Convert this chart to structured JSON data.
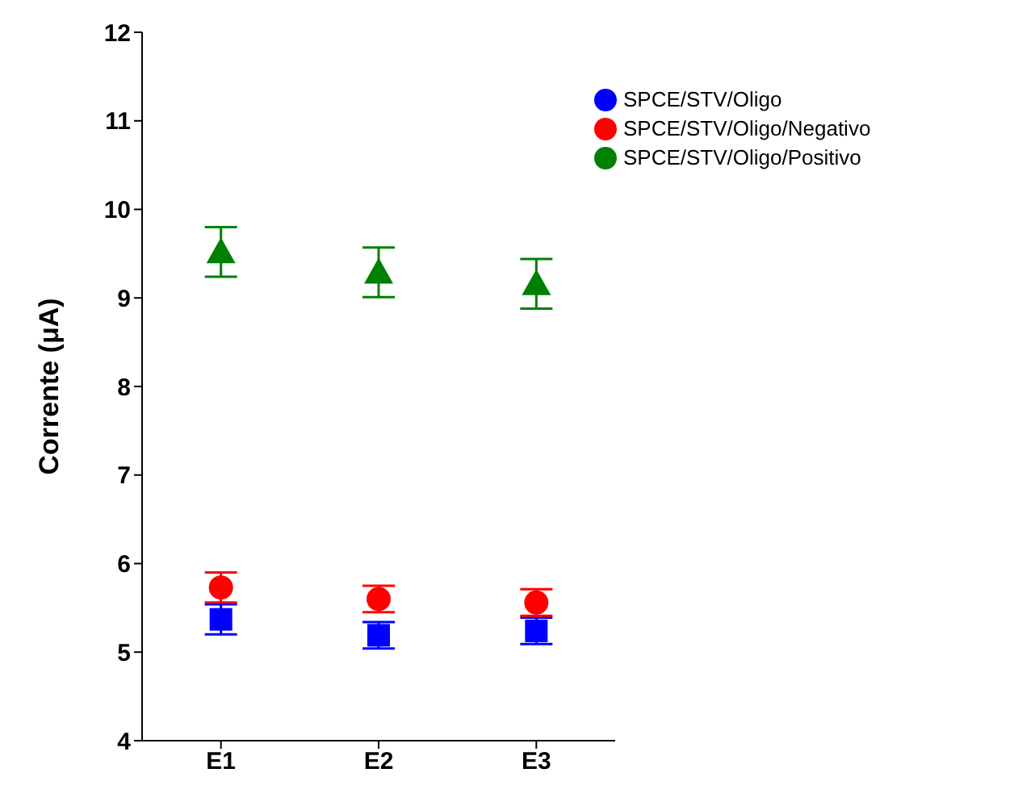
{
  "chart_data": {
    "type": "scatter",
    "ylabel": "Corrente (μA)",
    "categories": [
      "E1",
      "E2",
      "E3"
    ],
    "ylim": [
      4,
      12
    ],
    "yticks": [
      4,
      5,
      6,
      7,
      8,
      9,
      10,
      11,
      12
    ],
    "grid": false,
    "legend": "top right",
    "series": [
      {
        "name": "SPCE/STV/Oligo",
        "color": "#0000ff",
        "marker": "square",
        "values": [
          5.37,
          5.19,
          5.24
        ],
        "errors": [
          0.17,
          0.15,
          0.15
        ]
      },
      {
        "name": "SPCE/STV/Oligo/Negativo",
        "color": "#ff0000",
        "marker": "circle",
        "values": [
          5.73,
          5.6,
          5.56
        ],
        "errors": [
          0.17,
          0.15,
          0.15
        ]
      },
      {
        "name": "SPCE/STV/Oligo/Positivo",
        "color": "#008000",
        "marker": "triangle",
        "values": [
          9.52,
          9.29,
          9.16
        ],
        "errors": [
          0.28,
          0.28,
          0.28
        ]
      }
    ]
  }
}
